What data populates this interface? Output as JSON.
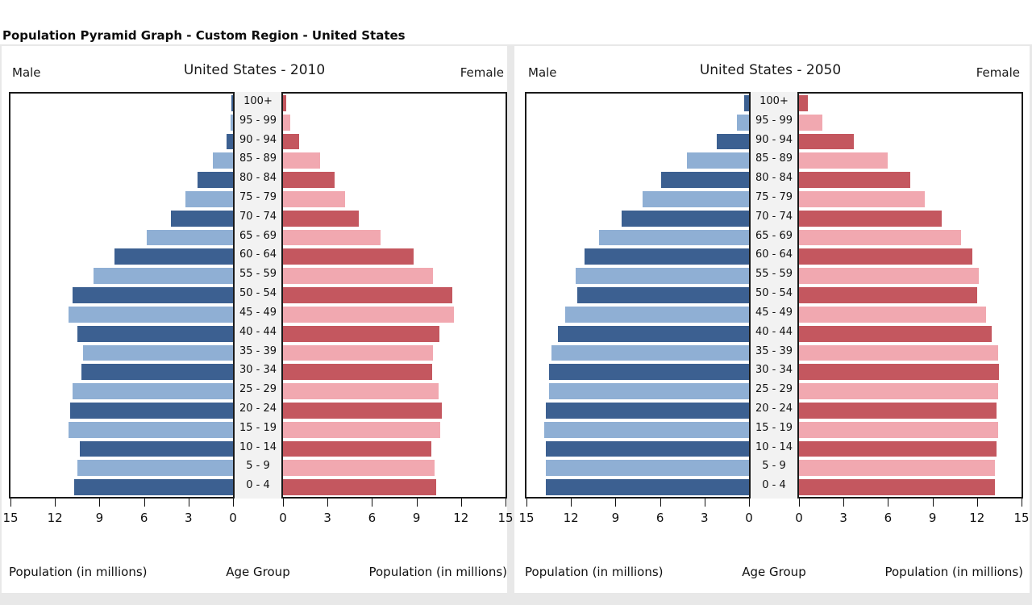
{
  "page": {
    "title": "Population Pyramid Graph - Custom Region - United States"
  },
  "colors": {
    "male_dark": "#3C6091",
    "male_light": "#8FAFD4",
    "female_dark": "#C4575F",
    "female_light": "#F1A8B0",
    "plot_border": "#1A1A1A",
    "strip_bg": "#F2F2F2",
    "panel_bg": "#FFFFFF",
    "page_bg": "#E8E8E8"
  },
  "chart_data": [
    {
      "type": "bar",
      "subtype": "population_pyramid",
      "title": "United States - 2010",
      "left_label": "Male",
      "right_label": "Female",
      "center_axis_label": "Age Group",
      "xlabel_left": "Population (in millions)",
      "xlabel_right": "Population (in millions)",
      "units": "millions",
      "xlim": [
        0,
        15
      ],
      "xticks_male": [
        15,
        12,
        9,
        6,
        3,
        0
      ],
      "xticks_female": [
        0,
        3,
        6,
        9,
        12,
        15
      ],
      "age_groups": [
        "100+",
        "95 - 99",
        "90 - 94",
        "85 - 89",
        "80 - 84",
        "75 - 79",
        "70 - 74",
        "65 - 69",
        "60 - 64",
        "55 - 59",
        "50 - 54",
        "45 - 49",
        "40 - 44",
        "35 - 39",
        "30 - 34",
        "25 - 29",
        "20 - 24",
        "15 - 19",
        "10 - 14",
        "5 - 9",
        "0 - 4"
      ],
      "series": [
        {
          "name": "Male",
          "values": [
            0.1,
            0.15,
            0.45,
            1.35,
            2.4,
            3.2,
            4.2,
            5.8,
            8.0,
            9.4,
            10.8,
            11.1,
            10.5,
            10.1,
            10.2,
            10.8,
            11.0,
            11.1,
            10.35,
            10.5,
            10.7
          ]
        },
        {
          "name": "Female",
          "values": [
            0.2,
            0.5,
            1.1,
            2.5,
            3.5,
            4.2,
            5.1,
            6.6,
            8.8,
            10.1,
            11.4,
            11.5,
            10.55,
            10.1,
            10.05,
            10.5,
            10.7,
            10.6,
            10.0,
            10.2,
            10.3
          ]
        }
      ]
    },
    {
      "type": "bar",
      "subtype": "population_pyramid",
      "title": "United States - 2050",
      "left_label": "Male",
      "right_label": "Female",
      "center_axis_label": "Age Group",
      "xlabel_left": "Population (in millions)",
      "xlabel_right": "Population (in millions)",
      "units": "millions",
      "xlim": [
        0,
        15
      ],
      "xticks_male": [
        15,
        12,
        9,
        6,
        3,
        0
      ],
      "xticks_female": [
        0,
        3,
        6,
        9,
        12,
        15
      ],
      "age_groups": [
        "100+",
        "95 - 99",
        "90 - 94",
        "85 - 89",
        "80 - 84",
        "75 - 79",
        "70 - 74",
        "65 - 69",
        "60 - 64",
        "55 - 59",
        "50 - 54",
        "45 - 49",
        "40 - 44",
        "35 - 39",
        "30 - 34",
        "25 - 29",
        "20 - 24",
        "15 - 19",
        "10 - 14",
        "5 - 9",
        "0 - 4"
      ],
      "series": [
        {
          "name": "Male",
          "values": [
            0.3,
            0.8,
            2.2,
            4.2,
            5.9,
            7.2,
            8.6,
            10.1,
            11.1,
            11.7,
            11.6,
            12.4,
            12.9,
            13.3,
            13.5,
            13.5,
            13.7,
            13.8,
            13.7,
            13.7,
            13.7
          ]
        },
        {
          "name": "Female",
          "values": [
            0.6,
            1.6,
            3.7,
            6.0,
            7.5,
            8.5,
            9.6,
            10.9,
            11.7,
            12.1,
            12.0,
            12.6,
            13.0,
            13.4,
            13.5,
            13.4,
            13.3,
            13.4,
            13.3,
            13.2,
            13.2
          ]
        }
      ]
    }
  ]
}
